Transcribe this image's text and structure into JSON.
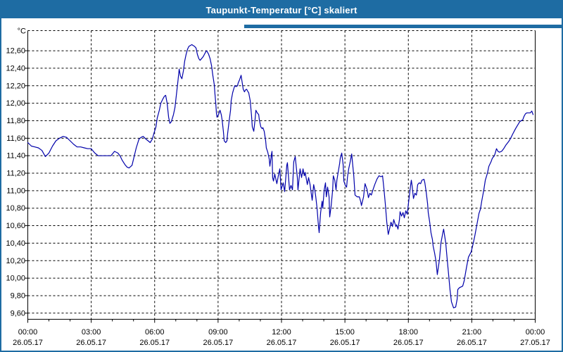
{
  "window": {
    "title": "Taupunkt-Temperatur [°C] skaliert"
  },
  "colors": {
    "title_bar": "#1e6ca3",
    "window_border": "#1e6ca3",
    "plot_background": "#ffffff",
    "grid": "#000000",
    "axis": "#000000",
    "text": "#000000",
    "line": "#0000aa"
  },
  "chart_data": {
    "type": "line",
    "title": "Taupunkt-Temperatur [°C] skaliert",
    "y_unit": "°C",
    "grid": true,
    "legend": "none",
    "ylim_plot": [
      9.53,
      12.83
    ],
    "xlim_hours": [
      0,
      24
    ],
    "x_minor_step_hours": 1,
    "y_ticks": [
      {
        "v": 12.6,
        "label": "12,60"
      },
      {
        "v": 12.4,
        "label": "12,40"
      },
      {
        "v": 12.2,
        "label": "12,20"
      },
      {
        "v": 12.0,
        "label": "12,00"
      },
      {
        "v": 11.8,
        "label": "11,80"
      },
      {
        "v": 11.6,
        "label": "11,60"
      },
      {
        "v": 11.4,
        "label": "11,40"
      },
      {
        "v": 11.2,
        "label": "11,20"
      },
      {
        "v": 11.0,
        "label": "11,00"
      },
      {
        "v": 10.8,
        "label": "10,80"
      },
      {
        "v": 10.6,
        "label": "10,60"
      },
      {
        "v": 10.4,
        "label": "10,40"
      },
      {
        "v": 10.2,
        "label": "10,20"
      },
      {
        "v": 10.0,
        "label": "10,00"
      },
      {
        "v": 9.8,
        "label": "9,80"
      },
      {
        "v": 9.6,
        "label": "9,60"
      }
    ],
    "x_ticks": [
      {
        "h": 0,
        "time": "00:00",
        "date": "26.05.17"
      },
      {
        "h": 3,
        "time": "03:00",
        "date": "26.05.17"
      },
      {
        "h": 6,
        "time": "06:00",
        "date": "26.05.17"
      },
      {
        "h": 9,
        "time": "09:00",
        "date": "26.05.17"
      },
      {
        "h": 12,
        "time": "12:00",
        "date": "26.05.17"
      },
      {
        "h": 15,
        "time": "15:00",
        "date": "26.05.17"
      },
      {
        "h": 18,
        "time": "18:00",
        "date": "26.05.17"
      },
      {
        "h": 21,
        "time": "21:00",
        "date": "26.05.17"
      },
      {
        "h": 24,
        "time": "00:00",
        "date": "27.05.17"
      }
    ],
    "points": [
      [
        0.0,
        11.55
      ],
      [
        0.17,
        11.51
      ],
      [
        0.33,
        11.5
      ],
      [
        0.5,
        11.49
      ],
      [
        0.67,
        11.46
      ],
      [
        0.83,
        11.39
      ],
      [
        1.0,
        11.43
      ],
      [
        1.17,
        11.51
      ],
      [
        1.33,
        11.57
      ],
      [
        1.5,
        11.6
      ],
      [
        1.67,
        11.62
      ],
      [
        1.83,
        11.61
      ],
      [
        2.0,
        11.57
      ],
      [
        2.17,
        11.53
      ],
      [
        2.33,
        11.5
      ],
      [
        2.5,
        11.5
      ],
      [
        2.67,
        11.49
      ],
      [
        2.83,
        11.48
      ],
      [
        3.0,
        11.48
      ],
      [
        3.17,
        11.43
      ],
      [
        3.33,
        11.4
      ],
      [
        3.5,
        11.4
      ],
      [
        3.7,
        11.4
      ],
      [
        3.93,
        11.4
      ],
      [
        4.1,
        11.45
      ],
      [
        4.26,
        11.43
      ],
      [
        4.36,
        11.4
      ],
      [
        4.46,
        11.35
      ],
      [
        4.59,
        11.3
      ],
      [
        4.69,
        11.27
      ],
      [
        4.79,
        11.26
      ],
      [
        4.93,
        11.29
      ],
      [
        5.03,
        11.39
      ],
      [
        5.13,
        11.49
      ],
      [
        5.26,
        11.59
      ],
      [
        5.36,
        11.61
      ],
      [
        5.46,
        11.62
      ],
      [
        5.59,
        11.59
      ],
      [
        5.69,
        11.57
      ],
      [
        5.79,
        11.55
      ],
      [
        5.89,
        11.59
      ],
      [
        5.96,
        11.65
      ],
      [
        6.06,
        11.73
      ],
      [
        6.12,
        11.83
      ],
      [
        6.22,
        11.92
      ],
      [
        6.29,
        12.0
      ],
      [
        6.39,
        12.05
      ],
      [
        6.46,
        12.08
      ],
      [
        6.52,
        12.09
      ],
      [
        6.59,
        12.0
      ],
      [
        6.66,
        11.84
      ],
      [
        6.72,
        11.77
      ],
      [
        6.79,
        11.79
      ],
      [
        6.89,
        11.87
      ],
      [
        6.96,
        11.95
      ],
      [
        7.03,
        12.1
      ],
      [
        7.1,
        12.25
      ],
      [
        7.16,
        12.39
      ],
      [
        7.22,
        12.31
      ],
      [
        7.29,
        12.28
      ],
      [
        7.36,
        12.37
      ],
      [
        7.42,
        12.48
      ],
      [
        7.49,
        12.56
      ],
      [
        7.56,
        12.62
      ],
      [
        7.62,
        12.65
      ],
      [
        7.69,
        12.66
      ],
      [
        7.76,
        12.67
      ],
      [
        7.82,
        12.66
      ],
      [
        7.89,
        12.65
      ],
      [
        7.96,
        12.63
      ],
      [
        8.02,
        12.56
      ],
      [
        8.09,
        12.51
      ],
      [
        8.15,
        12.49
      ],
      [
        8.22,
        12.51
      ],
      [
        8.29,
        12.53
      ],
      [
        8.36,
        12.56
      ],
      [
        8.42,
        12.59
      ],
      [
        8.46,
        12.6
      ],
      [
        8.55,
        12.56
      ],
      [
        8.62,
        12.51
      ],
      [
        8.69,
        12.43
      ],
      [
        8.75,
        12.32
      ],
      [
        8.82,
        12.21
      ],
      [
        8.85,
        12.11
      ],
      [
        8.89,
        12.0
      ],
      [
        8.92,
        11.89
      ],
      [
        8.95,
        11.84
      ],
      [
        9.02,
        11.87
      ],
      [
        9.09,
        11.92
      ],
      [
        9.15,
        11.87
      ],
      [
        9.19,
        11.81
      ],
      [
        9.25,
        11.68
      ],
      [
        9.29,
        11.57
      ],
      [
        9.36,
        11.55
      ],
      [
        9.42,
        11.57
      ],
      [
        9.45,
        11.65
      ],
      [
        9.52,
        11.79
      ],
      [
        9.59,
        11.92
      ],
      [
        9.62,
        12.03
      ],
      [
        9.69,
        12.12
      ],
      [
        9.75,
        12.17
      ],
      [
        9.79,
        12.2
      ],
      [
        9.85,
        12.19
      ],
      [
        9.92,
        12.2
      ],
      [
        9.95,
        12.23
      ],
      [
        10.02,
        12.27
      ],
      [
        10.09,
        12.32
      ],
      [
        10.12,
        12.27
      ],
      [
        10.19,
        12.16
      ],
      [
        10.25,
        12.13
      ],
      [
        10.29,
        12.15
      ],
      [
        10.35,
        12.16
      ],
      [
        10.42,
        12.13
      ],
      [
        10.45,
        12.12
      ],
      [
        10.52,
        12.03
      ],
      [
        10.58,
        11.87
      ],
      [
        10.62,
        11.73
      ],
      [
        10.69,
        11.68
      ],
      [
        10.75,
        11.81
      ],
      [
        10.79,
        11.92
      ],
      [
        10.85,
        11.89
      ],
      [
        10.92,
        11.87
      ],
      [
        10.95,
        11.81
      ],
      [
        11.02,
        11.73
      ],
      [
        11.08,
        11.71
      ],
      [
        11.12,
        11.72
      ],
      [
        11.18,
        11.68
      ],
      [
        11.25,
        11.57
      ],
      [
        11.28,
        11.49
      ],
      [
        11.35,
        11.44
      ],
      [
        11.42,
        11.36
      ],
      [
        11.45,
        11.28
      ],
      [
        11.52,
        11.41
      ],
      [
        11.55,
        11.45
      ],
      [
        11.58,
        11.15
      ],
      [
        11.62,
        11.11
      ],
      [
        11.68,
        11.19
      ],
      [
        11.78,
        11.08
      ],
      [
        11.85,
        11.17
      ],
      [
        11.92,
        11.25
      ],
      [
        11.98,
        11.01
      ],
      [
        12.08,
        11.09
      ],
      [
        12.15,
        10.99
      ],
      [
        12.25,
        11.29
      ],
      [
        12.28,
        11.32
      ],
      [
        12.38,
        11.01
      ],
      [
        12.45,
        11.06
      ],
      [
        12.52,
        11.01
      ],
      [
        12.58,
        11.33
      ],
      [
        12.65,
        11.39
      ],
      [
        12.75,
        11.15
      ],
      [
        12.78,
        11.01
      ],
      [
        12.88,
        11.25
      ],
      [
        12.95,
        11.15
      ],
      [
        13.02,
        11.25
      ],
      [
        13.08,
        11.17
      ],
      [
        13.12,
        11.21
      ],
      [
        13.22,
        11.07
      ],
      [
        13.28,
        11.15
      ],
      [
        13.35,
        11.07
      ],
      [
        13.45,
        10.89
      ],
      [
        13.52,
        11.07
      ],
      [
        13.58,
        11.0
      ],
      [
        13.62,
        10.93
      ],
      [
        13.68,
        10.8
      ],
      [
        13.75,
        10.59
      ],
      [
        13.78,
        10.52
      ],
      [
        13.85,
        10.75
      ],
      [
        13.92,
        10.88
      ],
      [
        13.95,
        10.8
      ],
      [
        14.02,
        11.01
      ],
      [
        14.08,
        11.09
      ],
      [
        14.12,
        10.93
      ],
      [
        14.18,
        11.04
      ],
      [
        14.25,
        10.93
      ],
      [
        14.28,
        10.7
      ],
      [
        14.35,
        10.83
      ],
      [
        14.42,
        11.01
      ],
      [
        14.45,
        11.17
      ],
      [
        14.52,
        11.12
      ],
      [
        14.58,
        11.01
      ],
      [
        14.62,
        11.12
      ],
      [
        14.68,
        11.21
      ],
      [
        14.75,
        11.31
      ],
      [
        14.78,
        11.37
      ],
      [
        14.85,
        11.43
      ],
      [
        14.92,
        11.29
      ],
      [
        14.95,
        11.11
      ],
      [
        15.02,
        11.06
      ],
      [
        15.08,
        11.04
      ],
      [
        15.12,
        11.15
      ],
      [
        15.18,
        11.25
      ],
      [
        15.25,
        11.33
      ],
      [
        15.32,
        11.42
      ],
      [
        15.42,
        11.17
      ],
      [
        15.48,
        10.95
      ],
      [
        15.58,
        10.93
      ],
      [
        15.68,
        10.93
      ],
      [
        15.75,
        10.87
      ],
      [
        15.78,
        10.83
      ],
      [
        15.88,
        10.93
      ],
      [
        15.95,
        11.08
      ],
      [
        16.05,
        11.01
      ],
      [
        16.11,
        10.92
      ],
      [
        16.18,
        10.97
      ],
      [
        16.25,
        10.95
      ],
      [
        16.31,
        11.0
      ],
      [
        16.41,
        11.07
      ],
      [
        16.51,
        11.13
      ],
      [
        16.61,
        11.17
      ],
      [
        16.71,
        11.16
      ],
      [
        16.78,
        11.17
      ],
      [
        16.85,
        11.01
      ],
      [
        16.91,
        10.85
      ],
      [
        16.98,
        10.64
      ],
      [
        17.05,
        10.5
      ],
      [
        17.11,
        10.56
      ],
      [
        17.18,
        10.64
      ],
      [
        17.25,
        10.59
      ],
      [
        17.31,
        10.67
      ],
      [
        17.41,
        10.59
      ],
      [
        17.45,
        10.61
      ],
      [
        17.51,
        10.56
      ],
      [
        17.58,
        10.67
      ],
      [
        17.61,
        10.76
      ],
      [
        17.68,
        10.71
      ],
      [
        17.75,
        10.75
      ],
      [
        17.81,
        10.69
      ],
      [
        17.88,
        10.77
      ],
      [
        17.95,
        10.73
      ],
      [
        17.98,
        10.8
      ],
      [
        18.04,
        10.93
      ],
      [
        18.11,
        11.07
      ],
      [
        18.14,
        11.12
      ],
      [
        18.18,
        11.05
      ],
      [
        18.24,
        10.91
      ],
      [
        18.31,
        10.97
      ],
      [
        18.38,
        10.95
      ],
      [
        18.44,
        11.07
      ],
      [
        18.51,
        11.09
      ],
      [
        18.58,
        11.08
      ],
      [
        18.64,
        11.12
      ],
      [
        18.74,
        11.13
      ],
      [
        18.78,
        11.09
      ],
      [
        18.84,
        10.99
      ],
      [
        18.91,
        10.85
      ],
      [
        18.94,
        10.75
      ],
      [
        19.01,
        10.64
      ],
      [
        19.07,
        10.52
      ],
      [
        19.14,
        10.44
      ],
      [
        19.17,
        10.37
      ],
      [
        19.24,
        10.29
      ],
      [
        19.31,
        10.19
      ],
      [
        19.37,
        10.04
      ],
      [
        19.47,
        10.21
      ],
      [
        19.54,
        10.4
      ],
      [
        19.64,
        10.53
      ],
      [
        19.67,
        10.56
      ],
      [
        19.77,
        10.4
      ],
      [
        19.84,
        10.21
      ],
      [
        19.91,
        10.03
      ],
      [
        19.97,
        9.87
      ],
      [
        20.04,
        9.73
      ],
      [
        20.14,
        9.66
      ],
      [
        20.24,
        9.67
      ],
      [
        20.31,
        9.76
      ],
      [
        20.34,
        9.87
      ],
      [
        20.41,
        9.89
      ],
      [
        20.57,
        9.91
      ],
      [
        20.64,
        9.97
      ],
      [
        20.74,
        10.11
      ],
      [
        20.84,
        10.24
      ],
      [
        20.97,
        10.3
      ],
      [
        21.07,
        10.4
      ],
      [
        21.14,
        10.48
      ],
      [
        21.24,
        10.61
      ],
      [
        21.34,
        10.74
      ],
      [
        21.41,
        10.79
      ],
      [
        21.47,
        10.88
      ],
      [
        21.57,
        11.01
      ],
      [
        21.64,
        11.12
      ],
      [
        21.74,
        11.2
      ],
      [
        21.81,
        11.28
      ],
      [
        21.91,
        11.33
      ],
      [
        21.97,
        11.37
      ],
      [
        22.07,
        11.4
      ],
      [
        22.11,
        11.43
      ],
      [
        22.17,
        11.48
      ],
      [
        22.24,
        11.45
      ],
      [
        22.31,
        11.44
      ],
      [
        22.41,
        11.45
      ],
      [
        22.51,
        11.48
      ],
      [
        22.61,
        11.52
      ],
      [
        22.74,
        11.56
      ],
      [
        22.84,
        11.6
      ],
      [
        22.94,
        11.65
      ],
      [
        23.07,
        11.71
      ],
      [
        23.17,
        11.75
      ],
      [
        23.27,
        11.79
      ],
      [
        23.41,
        11.81
      ],
      [
        23.47,
        11.85
      ],
      [
        23.54,
        11.88
      ],
      [
        23.61,
        11.89
      ],
      [
        23.71,
        11.89
      ],
      [
        23.77,
        11.89
      ],
      [
        23.84,
        11.91
      ],
      [
        23.9,
        11.87
      ]
    ]
  }
}
